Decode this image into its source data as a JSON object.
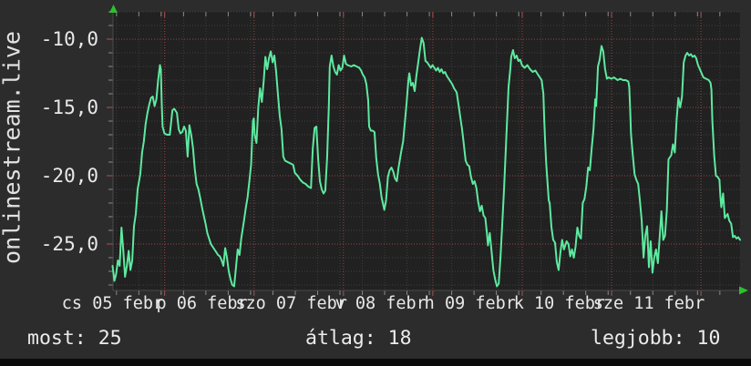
{
  "watermark": "onlinestream.live",
  "stats": [
    {
      "label": "most:",
      "value": "25"
    },
    {
      "label": "átlag:",
      "value": "18"
    },
    {
      "label": "legjobb:",
      "value": "10"
    }
  ],
  "colors": {
    "bg": "#2c2c2c",
    "plot_bg": "#212121",
    "grid_minor": "#3e3e3e",
    "grid_major": "#9b4343",
    "line": "#5ee9a0",
    "text": "#e8e8e8",
    "arrow": "#2ebf2e",
    "tick_minor": "#8a8a8a",
    "tick_major": "#b05050",
    "axis": "#4a4a4a",
    "bottom_bar": "#0a0a0a"
  },
  "chart_data": {
    "type": "line",
    "title": "",
    "xlabel": "",
    "ylabel": "",
    "x_unit": "days (Feb 5 - Feb 11)",
    "xlim": [
      0,
      7.02
    ],
    "ylim": [
      -28.4,
      -8.0
    ],
    "grid": true,
    "legend": "none",
    "y_major_ticks": [
      {
        "v": -10,
        "label": "-10,0"
      },
      {
        "v": -15,
        "label": "-15,0"
      },
      {
        "v": -20,
        "label": "-20,0"
      },
      {
        "v": -25,
        "label": "-25,0"
      }
    ],
    "y_minor_from": -8,
    "y_minor_to": -28,
    "y_minor_step": 1,
    "x_minor_start": 0.044,
    "x_minor_step": 0.25,
    "x_day_lines": [
      0.583,
      1.583,
      2.583,
      3.583,
      4.583,
      5.583,
      6.583
    ],
    "x_tick_labels": [
      {
        "t": 0,
        "label": "cs 05 febr"
      },
      {
        "t": 1,
        "label": "p 06 febr"
      },
      {
        "t": 2,
        "label": "szo 07 febr"
      },
      {
        "t": 3,
        "label": "v 08 febr"
      },
      {
        "t": 4,
        "label": "h 09 febr"
      },
      {
        "t": 5,
        "label": "k 10 febr"
      },
      {
        "t": 6,
        "label": "sze 11 febr"
      }
    ],
    "points": [
      [
        0.0,
        -26.6
      ],
      [
        0.02,
        -27.7
      ],
      [
        0.04,
        -27.2
      ],
      [
        0.06,
        -26.2
      ],
      [
        0.08,
        -26.6
      ],
      [
        0.1,
        -23.8
      ],
      [
        0.12,
        -25.5
      ],
      [
        0.14,
        -27.4
      ],
      [
        0.16,
        -26.6
      ],
      [
        0.18,
        -25.5
      ],
      [
        0.2,
        -26.9
      ],
      [
        0.22,
        -26.2
      ],
      [
        0.24,
        -23.7
      ],
      [
        0.26,
        -22.8
      ],
      [
        0.28,
        -21.0
      ],
      [
        0.31,
        -19.9
      ],
      [
        0.33,
        -18.3
      ],
      [
        0.35,
        -17.5
      ],
      [
        0.37,
        -16.2
      ],
      [
        0.39,
        -15.4
      ],
      [
        0.41,
        -14.8
      ],
      [
        0.43,
        -14.3
      ],
      [
        0.45,
        -14.2
      ],
      [
        0.47,
        -14.9
      ],
      [
        0.49,
        -14.4
      ],
      [
        0.51,
        -13.0
      ],
      [
        0.53,
        -11.9
      ],
      [
        0.54,
        -12.2
      ],
      [
        0.55,
        -14.6
      ],
      [
        0.56,
        -16.4
      ],
      [
        0.58,
        -16.9
      ],
      [
        0.61,
        -17.0
      ],
      [
        0.64,
        -17.0
      ],
      [
        0.67,
        -15.2
      ],
      [
        0.69,
        -15.1
      ],
      [
        0.72,
        -15.4
      ],
      [
        0.74,
        -16.6
      ],
      [
        0.76,
        -16.9
      ],
      [
        0.78,
        -16.8
      ],
      [
        0.8,
        -16.4
      ],
      [
        0.82,
        -16.7
      ],
      [
        0.84,
        -18.6
      ],
      [
        0.86,
        -16.3
      ],
      [
        0.88,
        -17.0
      ],
      [
        0.9,
        -18.0
      ],
      [
        0.92,
        -19.5
      ],
      [
        0.94,
        -20.6
      ],
      [
        0.96,
        -21.0
      ],
      [
        0.98,
        -21.6
      ],
      [
        1.0,
        -22.3
      ],
      [
        1.02,
        -22.9
      ],
      [
        1.04,
        -23.5
      ],
      [
        1.06,
        -24.2
      ],
      [
        1.08,
        -24.6
      ],
      [
        1.1,
        -25.0
      ],
      [
        1.12,
        -25.2
      ],
      [
        1.14,
        -25.4
      ],
      [
        1.16,
        -25.6
      ],
      [
        1.18,
        -25.8
      ],
      [
        1.2,
        -25.9
      ],
      [
        1.22,
        -26.2
      ],
      [
        1.24,
        -26.6
      ],
      [
        1.26,
        -25.3
      ],
      [
        1.28,
        -26.0
      ],
      [
        1.3,
        -27.0
      ],
      [
        1.32,
        -27.6
      ],
      [
        1.34,
        -28.0
      ],
      [
        1.36,
        -28.1
      ],
      [
        1.38,
        -26.8
      ],
      [
        1.4,
        -25.4
      ],
      [
        1.42,
        -25.8
      ],
      [
        1.44,
        -24.6
      ],
      [
        1.47,
        -23.3
      ],
      [
        1.49,
        -22.4
      ],
      [
        1.51,
        -21.6
      ],
      [
        1.53,
        -20.4
      ],
      [
        1.55,
        -19.2
      ],
      [
        1.57,
        -16.0
      ],
      [
        1.58,
        -15.8
      ],
      [
        1.59,
        -17.0
      ],
      [
        1.61,
        -17.6
      ],
      [
        1.63,
        -15.0
      ],
      [
        1.65,
        -13.6
      ],
      [
        1.67,
        -14.6
      ],
      [
        1.69,
        -13.1
      ],
      [
        1.71,
        -11.3
      ],
      [
        1.73,
        -12.2
      ],
      [
        1.75,
        -11.4
      ],
      [
        1.77,
        -10.9
      ],
      [
        1.79,
        -11.7
      ],
      [
        1.81,
        -11.2
      ],
      [
        1.83,
        -12.4
      ],
      [
        1.85,
        -14.0
      ],
      [
        1.87,
        -15.6
      ],
      [
        1.89,
        -16.6
      ],
      [
        1.91,
        -18.6
      ],
      [
        1.93,
        -18.9
      ],
      [
        1.96,
        -19.0
      ],
      [
        1.99,
        -19.1
      ],
      [
        2.02,
        -19.2
      ],
      [
        2.04,
        -19.8
      ],
      [
        2.07,
        -20.0
      ],
      [
        2.1,
        -20.3
      ],
      [
        2.13,
        -20.5
      ],
      [
        2.16,
        -20.6
      ],
      [
        2.19,
        -20.8
      ],
      [
        2.22,
        -20.9
      ],
      [
        2.24,
        -18.0
      ],
      [
        2.26,
        -16.5
      ],
      [
        2.28,
        -16.4
      ],
      [
        2.3,
        -18.8
      ],
      [
        2.32,
        -20.4
      ],
      [
        2.34,
        -21.0
      ],
      [
        2.36,
        -21.3
      ],
      [
        2.38,
        -21.1
      ],
      [
        2.4,
        -18.7
      ],
      [
        2.42,
        -14.9
      ],
      [
        2.43,
        -12.0
      ],
      [
        2.45,
        -11.2
      ],
      [
        2.47,
        -12.0
      ],
      [
        2.49,
        -12.4
      ],
      [
        2.51,
        -12.6
      ],
      [
        2.53,
        -11.9
      ],
      [
        2.55,
        -12.3
      ],
      [
        2.57,
        -12.1
      ],
      [
        2.59,
        -11.2
      ],
      [
        2.61,
        -11.8
      ],
      [
        2.63,
        -11.9
      ],
      [
        2.67,
        -12.0
      ],
      [
        2.7,
        -11.9
      ],
      [
        2.73,
        -12.0
      ],
      [
        2.76,
        -12.1
      ],
      [
        2.78,
        -12.3
      ],
      [
        2.8,
        -12.6
      ],
      [
        2.82,
        -12.8
      ],
      [
        2.84,
        -13.3
      ],
      [
        2.86,
        -14.5
      ],
      [
        2.87,
        -16.4
      ],
      [
        2.89,
        -16.7
      ],
      [
        2.91,
        -16.7
      ],
      [
        2.93,
        -16.8
      ],
      [
        2.95,
        -18.7
      ],
      [
        2.97,
        -19.9
      ],
      [
        2.99,
        -20.6
      ],
      [
        3.01,
        -21.6
      ],
      [
        3.03,
        -22.2
      ],
      [
        3.04,
        -22.5
      ],
      [
        3.06,
        -21.8
      ],
      [
        3.08,
        -20.1
      ],
      [
        3.1,
        -19.6
      ],
      [
        3.12,
        -19.4
      ],
      [
        3.14,
        -19.7
      ],
      [
        3.16,
        -20.2
      ],
      [
        3.18,
        -20.4
      ],
      [
        3.2,
        -19.4
      ],
      [
        3.23,
        -18.2
      ],
      [
        3.25,
        -17.5
      ],
      [
        3.27,
        -16.1
      ],
      [
        3.29,
        -14.6
      ],
      [
        3.31,
        -13.0
      ],
      [
        3.32,
        -12.5
      ],
      [
        3.34,
        -13.4
      ],
      [
        3.36,
        -13.2
      ],
      [
        3.38,
        -13.8
      ],
      [
        3.4,
        -12.6
      ],
      [
        3.42,
        -11.7
      ],
      [
        3.44,
        -10.7
      ],
      [
        3.46,
        -9.9
      ],
      [
        3.48,
        -10.3
      ],
      [
        3.5,
        -11.6
      ],
      [
        3.52,
        -11.7
      ],
      [
        3.54,
        -11.9
      ],
      [
        3.56,
        -12.1
      ],
      [
        3.58,
        -11.9
      ],
      [
        3.6,
        -12.1
      ],
      [
        3.62,
        -12.3
      ],
      [
        3.64,
        -12.1
      ],
      [
        3.66,
        -12.4
      ],
      [
        3.68,
        -12.2
      ],
      [
        3.7,
        -12.5
      ],
      [
        3.72,
        -12.4
      ],
      [
        3.74,
        -12.7
      ],
      [
        3.76,
        -12.9
      ],
      [
        3.78,
        -13.1
      ],
      [
        3.8,
        -13.3
      ],
      [
        3.82,
        -13.6
      ],
      [
        3.85,
        -13.9
      ],
      [
        3.87,
        -14.8
      ],
      [
        3.89,
        -15.7
      ],
      [
        3.91,
        -16.6
      ],
      [
        3.93,
        -17.7
      ],
      [
        3.95,
        -18.9
      ],
      [
        3.97,
        -19.2
      ],
      [
        3.99,
        -19.3
      ],
      [
        4.01,
        -20.1
      ],
      [
        4.03,
        -20.6
      ],
      [
        4.05,
        -20.4
      ],
      [
        4.07,
        -20.9
      ],
      [
        4.09,
        -21.9
      ],
      [
        4.11,
        -22.6
      ],
      [
        4.13,
        -22.2
      ],
      [
        4.15,
        -22.9
      ],
      [
        4.17,
        -23.1
      ],
      [
        4.19,
        -24.3
      ],
      [
        4.2,
        -25.1
      ],
      [
        4.22,
        -24.2
      ],
      [
        4.24,
        -25.5
      ],
      [
        4.26,
        -26.9
      ],
      [
        4.28,
        -27.6
      ],
      [
        4.3,
        -28.1
      ],
      [
        4.32,
        -27.9
      ],
      [
        4.34,
        -25.9
      ],
      [
        4.36,
        -23.5
      ],
      [
        4.38,
        -20.9
      ],
      [
        4.4,
        -18.0
      ],
      [
        4.41,
        -16.5
      ],
      [
        4.42,
        -15.0
      ],
      [
        4.43,
        -13.5
      ],
      [
        4.45,
        -12.2
      ],
      [
        4.46,
        -11.3
      ],
      [
        4.48,
        -10.8
      ],
      [
        4.5,
        -11.4
      ],
      [
        4.52,
        -11.2
      ],
      [
        4.54,
        -11.6
      ],
      [
        4.56,
        -11.5
      ],
      [
        4.58,
        -11.9
      ],
      [
        4.61,
        -12.1
      ],
      [
        4.64,
        -11.9
      ],
      [
        4.67,
        -12.2
      ],
      [
        4.7,
        -12.4
      ],
      [
        4.73,
        -12.3
      ],
      [
        4.76,
        -12.6
      ],
      [
        4.78,
        -12.8
      ],
      [
        4.8,
        -13.0
      ],
      [
        4.82,
        -14.0
      ],
      [
        4.83,
        -16.0
      ],
      [
        4.84,
        -17.6
      ],
      [
        4.85,
        -19.0
      ],
      [
        4.86,
        -20.0
      ],
      [
        4.88,
        -21.8
      ],
      [
        4.89,
        -22.0
      ],
      [
        4.91,
        -23.8
      ],
      [
        4.93,
        -24.7
      ],
      [
        4.95,
        -24.9
      ],
      [
        4.97,
        -26.3
      ],
      [
        4.99,
        -26.9
      ],
      [
        5.01,
        -25.6
      ],
      [
        5.03,
        -24.7
      ],
      [
        5.05,
        -25.4
      ],
      [
        5.08,
        -24.8
      ],
      [
        5.1,
        -25.0
      ],
      [
        5.12,
        -25.9
      ],
      [
        5.14,
        -25.4
      ],
      [
        5.16,
        -26.0
      ],
      [
        5.18,
        -25.2
      ],
      [
        5.2,
        -23.8
      ],
      [
        5.22,
        -24.4
      ],
      [
        5.24,
        -24.6
      ],
      [
        5.26,
        -22.0
      ],
      [
        5.28,
        -21.7
      ],
      [
        5.3,
        -20.8
      ],
      [
        5.32,
        -19.4
      ],
      [
        5.34,
        -19.6
      ],
      [
        5.36,
        -18.0
      ],
      [
        5.38,
        -16.6
      ],
      [
        5.4,
        -14.4
      ],
      [
        5.41,
        -14.9
      ],
      [
        5.42,
        -13.5
      ],
      [
        5.43,
        -12.0
      ],
      [
        5.45,
        -11.5
      ],
      [
        5.47,
        -10.5
      ],
      [
        5.49,
        -10.9
      ],
      [
        5.51,
        -12.2
      ],
      [
        5.53,
        -12.9
      ],
      [
        5.55,
        -12.8
      ],
      [
        5.58,
        -12.9
      ],
      [
        5.61,
        -12.8
      ],
      [
        5.65,
        -13.0
      ],
      [
        5.68,
        -12.9
      ],
      [
        5.71,
        -13.0
      ],
      [
        5.74,
        -13.0
      ],
      [
        5.77,
        -13.1
      ],
      [
        5.78,
        -13.5
      ],
      [
        5.79,
        -15.1
      ],
      [
        5.8,
        -16.9
      ],
      [
        5.82,
        -18.5
      ],
      [
        5.84,
        -19.9
      ],
      [
        5.86,
        -20.3
      ],
      [
        5.88,
        -20.6
      ],
      [
        5.9,
        -21.9
      ],
      [
        5.92,
        -23.3
      ],
      [
        5.94,
        -26.0
      ],
      [
        5.96,
        -24.4
      ],
      [
        5.98,
        -23.7
      ],
      [
        6.0,
        -26.7
      ],
      [
        6.02,
        -24.8
      ],
      [
        6.04,
        -27.1
      ],
      [
        6.06,
        -26.0
      ],
      [
        6.08,
        -25.4
      ],
      [
        6.1,
        -26.4
      ],
      [
        6.12,
        -24.6
      ],
      [
        6.14,
        -22.6
      ],
      [
        6.16,
        -24.7
      ],
      [
        6.18,
        -24.4
      ],
      [
        6.2,
        -22.6
      ],
      [
        6.22,
        -18.8
      ],
      [
        6.25,
        -18.5
      ],
      [
        6.27,
        -17.7
      ],
      [
        6.29,
        -18.3
      ],
      [
        6.31,
        -15.9
      ],
      [
        6.33,
        -14.3
      ],
      [
        6.35,
        -15.0
      ],
      [
        6.37,
        -14.2
      ],
      [
        6.39,
        -11.7
      ],
      [
        6.41,
        -11.2
      ],
      [
        6.43,
        -11.0
      ],
      [
        6.45,
        -11.2
      ],
      [
        6.47,
        -11.1
      ],
      [
        6.49,
        -11.3
      ],
      [
        6.51,
        -11.2
      ],
      [
        6.53,
        -11.4
      ],
      [
        6.55,
        -11.9
      ],
      [
        6.57,
        -12.2
      ],
      [
        6.59,
        -12.5
      ],
      [
        6.61,
        -12.8
      ],
      [
        6.64,
        -12.9
      ],
      [
        6.67,
        -13.0
      ],
      [
        6.69,
        -13.2
      ],
      [
        6.7,
        -13.7
      ],
      [
        6.71,
        -16.0
      ],
      [
        6.73,
        -18.5
      ],
      [
        6.75,
        -20.0
      ],
      [
        6.77,
        -20.1
      ],
      [
        6.79,
        -20.3
      ],
      [
        6.8,
        -21.5
      ],
      [
        6.81,
        -22.3
      ],
      [
        6.83,
        -21.3
      ],
      [
        6.85,
        -23.1
      ],
      [
        6.88,
        -22.8
      ],
      [
        6.9,
        -23.3
      ],
      [
        6.92,
        -23.5
      ],
      [
        6.94,
        -24.5
      ],
      [
        6.96,
        -24.4
      ],
      [
        6.98,
        -24.6
      ],
      [
        7.0,
        -24.5
      ],
      [
        7.02,
        -24.7
      ]
    ]
  }
}
